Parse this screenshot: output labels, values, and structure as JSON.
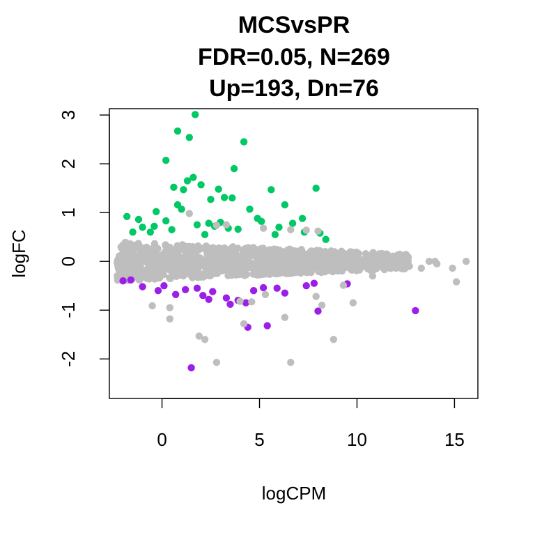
{
  "chart_data": {
    "type": "scatter",
    "title_lines": [
      "MCSvsPR",
      "FDR=0.05, N=269",
      "Up=193, Dn=76"
    ],
    "xlabel": "logCPM",
    "ylabel": "logFC",
    "xlim": [
      -2.7,
      16.2
    ],
    "ylim": [
      -2.81,
      3.13
    ],
    "x_ticks": [
      0,
      5,
      10,
      15
    ],
    "x_tick_labels": [
      "0",
      "5",
      "10",
      "15"
    ],
    "y_ticks": [
      -2,
      -1,
      0,
      1,
      2,
      3
    ],
    "y_tick_labels": [
      "-2",
      "-1",
      "0",
      "1",
      "2",
      "3"
    ],
    "grid": false,
    "legend": "none",
    "colors": {
      "up": "#00c864",
      "down": "#9b1fe8",
      "ns": "#bebebe"
    },
    "series": [
      {
        "key": "ns",
        "color": "#bebebe",
        "x": [
          1.4,
          2.8,
          3.3,
          5.2,
          6.6,
          7.4,
          8.0,
          -0.5,
          0.4,
          0.4,
          1.9,
          2.2,
          2.8,
          4.0,
          4.6,
          5.3,
          6.3,
          7.9,
          8.2,
          9.3,
          9.8,
          11.1,
          12.5,
          13.7,
          14.0,
          14.1,
          13.3,
          14.9,
          15.1,
          15.6,
          4.2,
          6.6,
          8.8,
          12.0,
          11.5,
          10.8
        ],
        "y": [
          0.98,
          0.74,
          0.75,
          0.68,
          0.65,
          0.64,
          0.62,
          -0.91,
          -0.95,
          -1.18,
          -1.53,
          -1.6,
          -2.07,
          -0.82,
          -0.83,
          -0.68,
          -1.15,
          -0.72,
          -0.9,
          -0.49,
          -0.85,
          -0.12,
          0.05,
          0.0,
          0.0,
          -0.05,
          -0.14,
          -0.14,
          -0.42,
          0.0,
          -1.28,
          -2.07,
          -1.6,
          0.08,
          -0.1,
          -0.3
        ],
        "band": {
          "x_range": [
            -2.3,
            12.7
          ],
          "center": 0.0,
          "half_width_at_low_x": 0.4,
          "half_width_at_high_x": 0.15
        }
      },
      {
        "key": "up",
        "color": "#00c864",
        "x": [
          1.7,
          0.8,
          1.4,
          4.2,
          0.2,
          3.7,
          1.3,
          1.6,
          2.0,
          1.1,
          0.6,
          2.9,
          2.5,
          3.2,
          3.6,
          4.5,
          5.6,
          6.3,
          7.2,
          7.9,
          -1.8,
          -1.2,
          -0.3,
          0.2,
          0.8,
          1.0,
          2.4,
          2.7,
          3.4,
          4.9,
          5.1,
          6.0,
          6.7,
          8.1,
          -1.5,
          -0.6,
          0.5,
          1.8,
          3.0,
          5.8,
          7.3,
          8.4,
          -1.0,
          -0.4,
          2.2,
          3.9
        ],
        "y": [
          3.01,
          2.67,
          2.54,
          2.45,
          2.07,
          1.9,
          1.65,
          1.72,
          1.57,
          1.47,
          1.52,
          1.48,
          1.27,
          1.31,
          1.3,
          1.07,
          1.47,
          1.16,
          0.88,
          1.5,
          0.92,
          0.86,
          1.02,
          0.83,
          1.16,
          1.07,
          0.78,
          0.72,
          0.68,
          0.88,
          0.82,
          0.7,
          0.78,
          0.58,
          0.6,
          0.6,
          0.65,
          0.75,
          0.8,
          0.55,
          0.6,
          0.45,
          0.7,
          0.72,
          0.55,
          0.66
        ]
      },
      {
        "key": "down",
        "color": "#9b1fe8",
        "x": [
          1.5,
          13.0,
          4.4,
          5.4,
          2.4,
          3.3,
          4.3,
          8.0,
          -1.6,
          -1.0,
          -0.2,
          0.7,
          1.8,
          2.6,
          3.9,
          5.2,
          6.3,
          7.4,
          9.5,
          -2.0,
          0.1,
          1.2,
          2.1,
          3.5,
          4.7,
          5.9,
          7.8
        ],
        "y": [
          -2.18,
          -1.01,
          -1.35,
          -1.32,
          -0.78,
          -0.75,
          -0.85,
          -1.02,
          -0.38,
          -0.52,
          -0.6,
          -0.68,
          -0.55,
          -0.62,
          -0.8,
          -0.54,
          -0.65,
          -0.5,
          -0.46,
          -0.4,
          -0.5,
          -0.58,
          -0.7,
          -0.88,
          -0.6,
          -0.55,
          -0.45
        ]
      }
    ]
  }
}
